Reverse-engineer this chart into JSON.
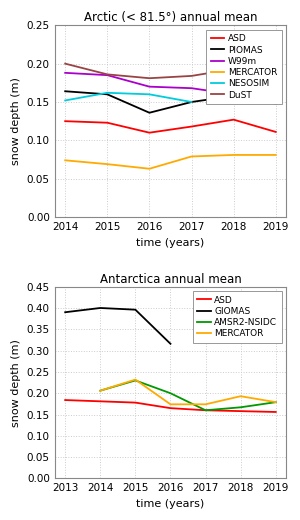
{
  "arctic": {
    "title": "Arctic (< 81.5°) annual mean",
    "xlabel": "time (years)",
    "ylabel": "snow depth (m)",
    "ylim": [
      0.0,
      0.25
    ],
    "yticks": [
      0.0,
      0.05,
      0.1,
      0.15,
      0.2,
      0.25
    ],
    "years": [
      2014,
      2015,
      2016,
      2017,
      2018,
      2019
    ],
    "series": {
      "ASD": {
        "color": "#ff0000",
        "values": [
          0.125,
          0.123,
          0.11,
          0.118,
          0.127,
          0.111
        ]
      },
      "PIOMAS": {
        "color": "#000000",
        "values": [
          0.164,
          0.16,
          0.136,
          0.15,
          0.158,
          0.148
        ]
      },
      "W99m": {
        "color": "#aa00cc",
        "values": [
          0.188,
          0.185,
          0.17,
          0.168,
          0.16,
          0.156
        ]
      },
      "MERCATOR": {
        "color": "#ffaa00",
        "values": [
          0.074,
          0.069,
          0.063,
          0.079,
          0.081,
          0.081
        ]
      },
      "NESOSIM": {
        "color": "#00ccdd",
        "values": [
          0.152,
          0.162,
          0.16,
          0.15,
          null,
          null
        ]
      },
      "DuST": {
        "color": "#994444",
        "values": [
          0.2,
          0.186,
          0.181,
          0.184,
          0.193,
          null
        ]
      }
    },
    "legend_order": [
      "ASD",
      "PIOMAS",
      "W99m",
      "MERCATOR",
      "NESOSIM",
      "DuST"
    ]
  },
  "antarctica": {
    "title": "Antarctica annual mean",
    "xlabel": "time (years)",
    "ylabel": "snow depth (m)",
    "ylim": [
      0.0,
      0.45
    ],
    "yticks": [
      0.0,
      0.05,
      0.1,
      0.15,
      0.2,
      0.25,
      0.3,
      0.35,
      0.4,
      0.45
    ],
    "years": [
      2013,
      2014,
      2015,
      2016,
      2017,
      2018,
      2019
    ],
    "series": {
      "ASD": {
        "color": "#ff0000",
        "values": [
          0.184,
          0.181,
          0.178,
          0.165,
          0.16,
          0.158,
          0.156
        ]
      },
      "GIOMAS": {
        "color": "#000000",
        "values": [
          0.39,
          0.4,
          0.396,
          0.316,
          null,
          null,
          null
        ]
      },
      "AMSR2-NSIDC": {
        "color": "#009900",
        "values": [
          null,
          0.206,
          0.23,
          0.2,
          0.16,
          0.167,
          0.179
        ]
      },
      "MERCATOR": {
        "color": "#ffaa00",
        "values": [
          null,
          0.206,
          0.232,
          0.174,
          0.174,
          0.193,
          0.179
        ]
      }
    },
    "legend_order": [
      "ASD",
      "GIOMAS",
      "AMSR2-NSIDC",
      "MERCATOR"
    ]
  },
  "bg_color": "#ffffff",
  "plot_bg_color": "#ffffff",
  "grid_color": "#cccccc",
  "spine_color": "#888888",
  "title_fontsize": 8.5,
  "label_fontsize": 8,
  "tick_fontsize": 7.5,
  "legend_fontsize": 6.5,
  "linewidth": 1.3
}
